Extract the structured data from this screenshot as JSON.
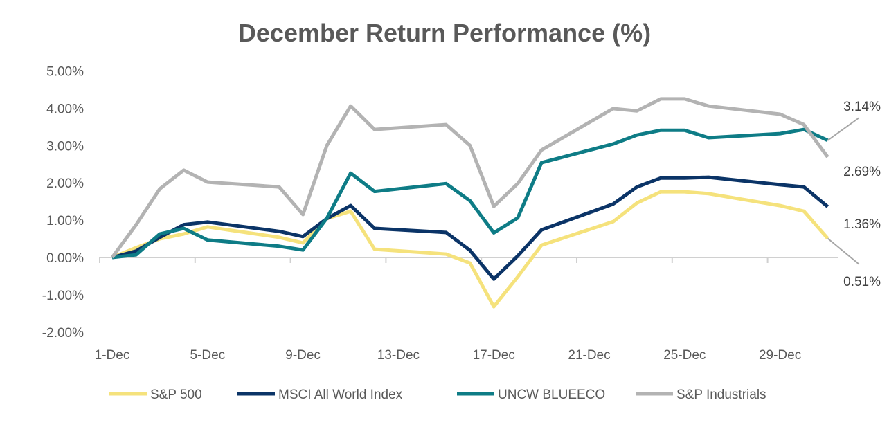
{
  "chart_data": {
    "type": "line",
    "title": "December Return Performance (%)",
    "xlabel": "",
    "ylabel": "",
    "ylim": [
      -2,
      5
    ],
    "y_ticks": [
      "5.00%",
      "4.00%",
      "3.00%",
      "2.00%",
      "1.00%",
      "0.00%",
      "-1.00%",
      "-2.00%"
    ],
    "y_tick_values": [
      5,
      4,
      3,
      2,
      1,
      0,
      -1,
      -2
    ],
    "x_tick_labels": [
      "1-Dec",
      "5-Dec",
      "9-Dec",
      "13-Dec",
      "17-Dec",
      "21-Dec",
      "25-Dec",
      "29-Dec"
    ],
    "x_tick_days": [
      1,
      5,
      9,
      13,
      17,
      21,
      25,
      29
    ],
    "x": [
      1,
      2,
      3,
      4,
      5,
      8,
      9,
      10,
      11,
      12,
      15,
      16,
      17,
      18,
      19,
      22,
      23,
      24,
      25,
      26,
      29,
      30,
      31
    ],
    "grid": false,
    "legend_position": "bottom",
    "series": [
      {
        "name": "S&P 500",
        "color": "#F5E27C",
        "values": [
          0,
          0.26,
          0.5,
          0.63,
          0.82,
          0.54,
          0.39,
          1.04,
          1.24,
          0.22,
          0.09,
          -0.15,
          -1.32,
          -0.52,
          0.33,
          0.96,
          1.46,
          1.76,
          1.76,
          1.71,
          1.39,
          1.24,
          0.51
        ],
        "end_label": "0.51%"
      },
      {
        "name": "MSCI All World Index",
        "color": "#0B3467",
        "values": [
          0,
          0.17,
          0.54,
          0.88,
          0.95,
          0.7,
          0.56,
          1.04,
          1.39,
          0.78,
          0.67,
          0.19,
          -0.58,
          0.04,
          0.74,
          1.43,
          1.89,
          2.13,
          2.13,
          2.15,
          1.95,
          1.89,
          1.36
        ],
        "end_label": "1.36%"
      },
      {
        "name": "UNCW BLUEECO",
        "color": "#0E7C86",
        "values": [
          0,
          0.07,
          0.63,
          0.78,
          0.47,
          0.3,
          0.2,
          1.05,
          2.26,
          1.77,
          1.98,
          1.52,
          0.66,
          1.06,
          2.54,
          3.04,
          3.28,
          3.41,
          3.41,
          3.21,
          3.32,
          3.43,
          3.14
        ],
        "end_label": "3.14%"
      },
      {
        "name": "S&P Industrials",
        "color": "#B3B3B3",
        "values": [
          0,
          0.87,
          1.84,
          2.34,
          2.02,
          1.89,
          1.15,
          3.0,
          4.06,
          3.43,
          3.56,
          3.0,
          1.37,
          1.98,
          2.88,
          3.99,
          3.93,
          4.25,
          4.25,
          4.06,
          3.84,
          3.56,
          2.69
        ],
        "end_label": "2.69%"
      }
    ]
  }
}
